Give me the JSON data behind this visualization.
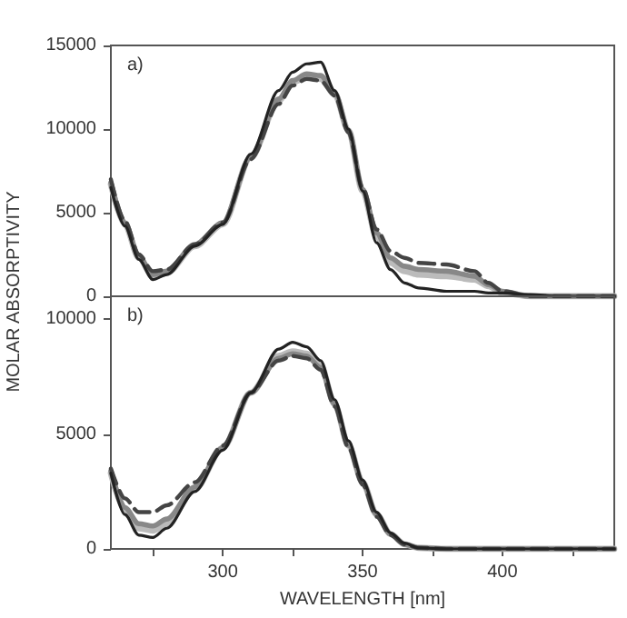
{
  "chart_data": [
    {
      "type": "line",
      "ylabel": "MOLAR ABSORPTIVITY",
      "annotations": [
        "a)"
      ],
      "x": [
        260,
        265,
        270,
        275,
        280,
        290,
        300,
        310,
        320,
        325,
        330,
        335,
        340,
        345,
        350,
        355,
        360,
        365,
        370,
        380,
        390,
        395,
        400,
        410,
        420,
        440
      ],
      "xlim": [
        260,
        440
      ],
      "ylim": [
        0,
        15000
      ],
      "yticks": [
        0,
        5000,
        10000,
        15000
      ],
      "tick_labels": "y",
      "grid": false,
      "series": [
        {
          "color": "#bbbbbb",
          "line_style": "solid",
          "values": [
            6700,
            4300,
            2300,
            1200,
            1400,
            3000,
            4300,
            8300,
            11700,
            12800,
            13100,
            13000,
            12100,
            9900,
            6300,
            3600,
            2000,
            1500,
            1300,
            1200,
            1000,
            600,
            200,
            0,
            0,
            0
          ]
        },
        {
          "color": "#888888",
          "line_style": "solid",
          "values": [
            6800,
            4400,
            2400,
            1300,
            1500,
            3100,
            4400,
            8300,
            11800,
            12900,
            13300,
            13200,
            12200,
            9900,
            6400,
            3800,
            2300,
            1800,
            1600,
            1500,
            1200,
            700,
            300,
            0,
            0,
            0
          ]
        },
        {
          "color": "#444444",
          "line_style": "dashed",
          "values": [
            7000,
            4500,
            2500,
            1500,
            1600,
            3100,
            4400,
            8200,
            11500,
            12600,
            13000,
            12900,
            12000,
            9800,
            6500,
            4000,
            2700,
            2300,
            2000,
            1900,
            1500,
            800,
            300,
            0,
            0,
            0
          ]
        },
        {
          "color": "#222222",
          "line_style": "solid",
          "values": [
            6500,
            4200,
            2200,
            1000,
            1300,
            3000,
            4300,
            8500,
            12300,
            13400,
            13900,
            14000,
            12300,
            10000,
            6300,
            3200,
            1600,
            800,
            500,
            300,
            300,
            200,
            200,
            100,
            0,
            0
          ]
        }
      ]
    },
    {
      "type": "line",
      "xlabel": "WAVELENGTH [nm]",
      "annotations": [
        "b)"
      ],
      "x": [
        260,
        265,
        270,
        275,
        280,
        290,
        300,
        310,
        320,
        325,
        330,
        335,
        340,
        345,
        350,
        355,
        360,
        365,
        370,
        380,
        390,
        395,
        400,
        410,
        420,
        440
      ],
      "xlim": [
        260,
        440
      ],
      "xticks": [
        {
          "value": 275,
          "label": null
        },
        300,
        {
          "value": 325,
          "label": null
        },
        350,
        {
          "value": 375,
          "label": null
        },
        400,
        {
          "value": 425,
          "label": null
        }
      ],
      "ylim": [
        0,
        11000
      ],
      "yticks": [
        0,
        5000,
        10000
      ],
      "grid": false,
      "series": [
        {
          "color": "#bbbbbb",
          "line_style": "solid",
          "values": [
            3300,
            1700,
            900,
            800,
            1100,
            2600,
            4400,
            6800,
            8400,
            8600,
            8500,
            8000,
            6300,
            4500,
            2900,
            1500,
            650,
            200,
            50,
            0,
            0,
            0,
            0,
            0,
            0,
            0
          ]
        },
        {
          "color": "#888888",
          "line_style": "solid",
          "values": [
            3400,
            1800,
            1100,
            1000,
            1300,
            2700,
            4400,
            6800,
            8300,
            8500,
            8400,
            7900,
            6300,
            4500,
            2900,
            1500,
            650,
            200,
            50,
            0,
            0,
            0,
            0,
            0,
            0,
            0
          ]
        },
        {
          "color": "#444444",
          "line_style": "dashed",
          "values": [
            3500,
            2200,
            1600,
            1600,
            1900,
            2900,
            4500,
            6800,
            8200,
            8400,
            8300,
            7800,
            6200,
            4400,
            2800,
            1400,
            600,
            200,
            50,
            0,
            0,
            0,
            0,
            0,
            0,
            0
          ]
        },
        {
          "color": "#222222",
          "line_style": "solid",
          "values": [
            3300,
            1500,
            600,
            500,
            900,
            2500,
            4300,
            6800,
            8700,
            9000,
            8800,
            8200,
            6500,
            4700,
            3000,
            1600,
            700,
            250,
            50,
            0,
            0,
            0,
            0,
            0,
            0,
            0
          ]
        }
      ]
    }
  ]
}
